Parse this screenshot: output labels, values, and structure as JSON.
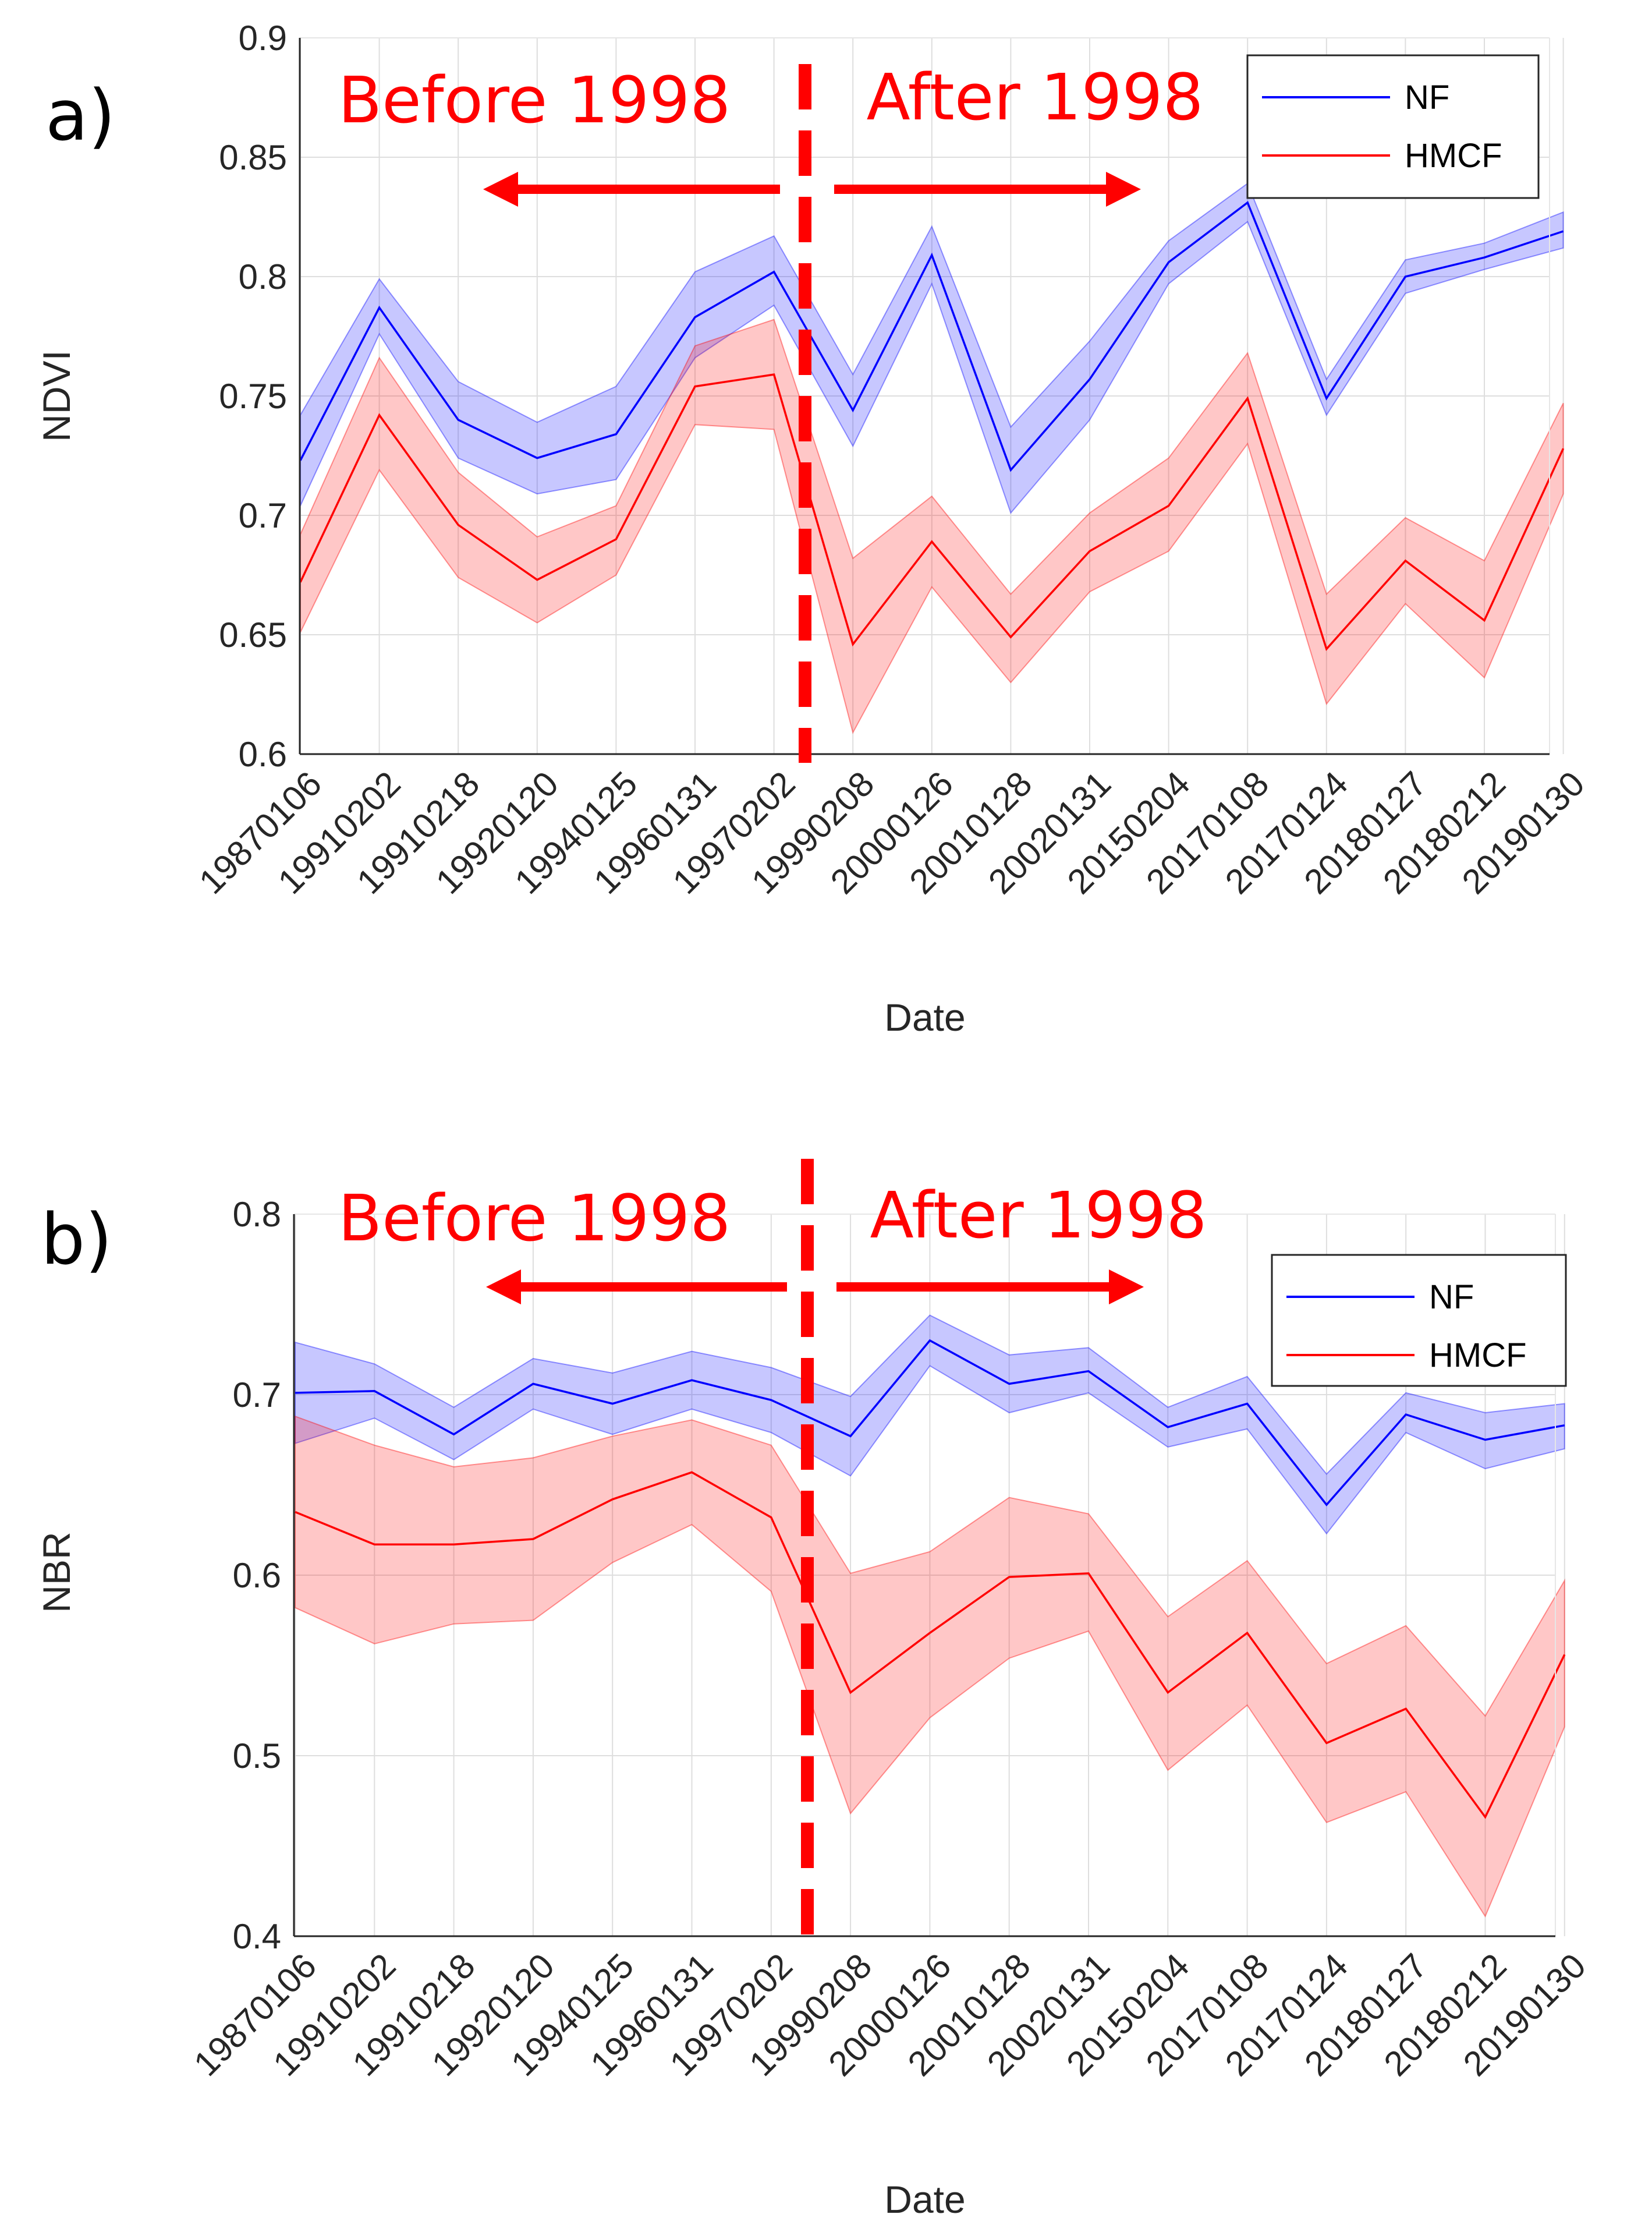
{
  "chart_data": [
    {
      "type": "line",
      "panel_label": "a)",
      "xlabel": "Date",
      "ylabel": "NDVI",
      "ylim": [
        0.6,
        0.9
      ],
      "yticks": [
        "0.6",
        "0.65",
        "0.7",
        "0.75",
        "0.8",
        "0.85",
        "0.9"
      ],
      "grid": true,
      "legend_position": "top-right",
      "categories": [
        "19870106",
        "19910202",
        "19910218",
        "19920120",
        "19940125",
        "19960131",
        "19970202",
        "19990208",
        "20000126",
        "20010128",
        "20020131",
        "20150204",
        "20170108",
        "20170124",
        "20180127",
        "20180212",
        "20190130"
      ],
      "series": [
        {
          "name": "NF",
          "color": "#0000ff",
          "values": [
            0.723,
            0.787,
            0.74,
            0.724,
            0.734,
            0.783,
            0.802,
            0.744,
            0.809,
            0.719,
            0.757,
            0.806,
            0.831,
            0.749,
            0.8,
            0.808,
            0.819
          ],
          "lower": [
            0.704,
            0.776,
            0.724,
            0.709,
            0.715,
            0.766,
            0.788,
            0.729,
            0.797,
            0.701,
            0.74,
            0.797,
            0.823,
            0.742,
            0.793,
            0.803,
            0.812
          ],
          "upper": [
            0.742,
            0.799,
            0.756,
            0.739,
            0.754,
            0.802,
            0.817,
            0.759,
            0.821,
            0.737,
            0.773,
            0.815,
            0.839,
            0.757,
            0.807,
            0.814,
            0.827
          ]
        },
        {
          "name": "HMCF",
          "color": "#ff0000",
          "values": [
            0.672,
            0.742,
            0.696,
            0.673,
            0.69,
            0.754,
            0.759,
            0.646,
            0.689,
            0.649,
            0.685,
            0.704,
            0.749,
            0.644,
            0.681,
            0.656,
            0.728
          ],
          "lower": [
            0.651,
            0.719,
            0.674,
            0.655,
            0.675,
            0.738,
            0.736,
            0.609,
            0.67,
            0.63,
            0.668,
            0.685,
            0.73,
            0.621,
            0.663,
            0.632,
            0.709
          ],
          "upper": [
            0.692,
            0.766,
            0.718,
            0.691,
            0.704,
            0.771,
            0.782,
            0.682,
            0.708,
            0.667,
            0.701,
            0.724,
            0.768,
            0.667,
            0.699,
            0.681,
            0.747
          ]
        }
      ],
      "annotations": [
        {
          "text": "Before 1998",
          "arrow": "left"
        },
        {
          "text": "After 1998",
          "arrow": "right"
        }
      ]
    },
    {
      "type": "line",
      "panel_label": "b)",
      "xlabel": "Date",
      "ylabel": "NBR",
      "ylim": [
        0.4,
        0.8
      ],
      "yticks": [
        "0.4",
        "0.5",
        "0.6",
        "0.7",
        "0.8"
      ],
      "grid": true,
      "legend_position": "top-right",
      "categories": [
        "19870106",
        "19910202",
        "19910218",
        "19920120",
        "19940125",
        "19960131",
        "19970202",
        "19990208",
        "20000126",
        "20010128",
        "20020131",
        "20150204",
        "20170108",
        "20170124",
        "20180127",
        "20180212",
        "20190130"
      ],
      "series": [
        {
          "name": "NF",
          "color": "#0000ff",
          "values": [
            0.701,
            0.702,
            0.678,
            0.706,
            0.695,
            0.708,
            0.697,
            0.677,
            0.73,
            0.706,
            0.713,
            0.682,
            0.695,
            0.639,
            0.689,
            0.675,
            0.683
          ],
          "lower": [
            0.673,
            0.687,
            0.664,
            0.692,
            0.678,
            0.692,
            0.679,
            0.655,
            0.716,
            0.69,
            0.701,
            0.671,
            0.681,
            0.623,
            0.679,
            0.659,
            0.67
          ],
          "upper": [
            0.729,
            0.717,
            0.693,
            0.72,
            0.712,
            0.724,
            0.715,
            0.699,
            0.744,
            0.722,
            0.726,
            0.693,
            0.71,
            0.656,
            0.701,
            0.69,
            0.695
          ]
        },
        {
          "name": "HMCF",
          "color": "#ff0000",
          "values": [
            0.635,
            0.617,
            0.617,
            0.62,
            0.642,
            0.657,
            0.632,
            0.535,
            0.568,
            0.599,
            0.601,
            0.535,
            0.568,
            0.507,
            0.526,
            0.466,
            0.556
          ],
          "lower": [
            0.582,
            0.562,
            0.573,
            0.575,
            0.607,
            0.628,
            0.591,
            0.468,
            0.521,
            0.554,
            0.569,
            0.492,
            0.528,
            0.463,
            0.48,
            0.411,
            0.516
          ],
          "upper": [
            0.688,
            0.672,
            0.66,
            0.665,
            0.677,
            0.686,
            0.672,
            0.601,
            0.613,
            0.643,
            0.634,
            0.577,
            0.608,
            0.551,
            0.572,
            0.522,
            0.597
          ]
        }
      ],
      "annotations": [
        {
          "text": "Before 1998",
          "arrow": "left"
        },
        {
          "text": "After 1998",
          "arrow": "right"
        }
      ]
    }
  ]
}
